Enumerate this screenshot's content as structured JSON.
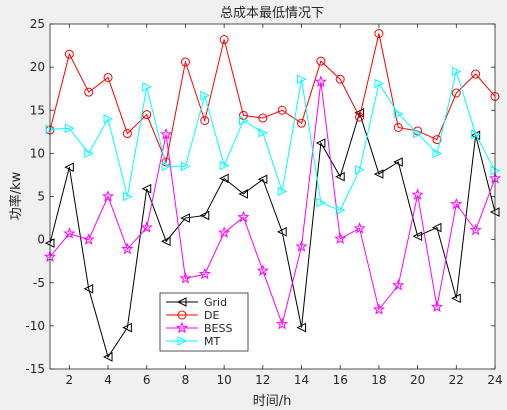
{
  "chart_data": {
    "type": "line",
    "title": "总成本最低情况下",
    "xlabel": "时间/h",
    "ylabel": "功率/kw",
    "xlim": [
      1,
      24
    ],
    "ylim": [
      -15,
      25
    ],
    "x_ticks": [
      2,
      4,
      6,
      8,
      10,
      12,
      14,
      16,
      18,
      20,
      22,
      24
    ],
    "y_ticks": [
      -15,
      -10,
      -5,
      0,
      5,
      10,
      15,
      20,
      25
    ],
    "x": [
      1,
      2,
      3,
      4,
      5,
      6,
      7,
      8,
      9,
      10,
      11,
      12,
      13,
      14,
      15,
      16,
      17,
      18,
      19,
      20,
      21,
      22,
      23,
      24
    ],
    "grid": false,
    "legend_position": "bottom-left",
    "series": [
      {
        "name": "Grid",
        "color": "#000000",
        "marker": "triangle-left",
        "values": [
          -0.4,
          8.4,
          -5.7,
          -13.6,
          -10.2,
          5.9,
          -0.2,
          2.5,
          2.8,
          7.1,
          5.3,
          7.0,
          0.9,
          -10.2,
          11.2,
          7.3,
          14.7,
          7.6,
          9.0,
          0.4,
          1.4,
          -6.8,
          12.1,
          3.2
        ]
      },
      {
        "name": "DE",
        "color": "#ff0000",
        "marker": "circle",
        "values": [
          12.7,
          21.5,
          17.1,
          18.8,
          12.3,
          14.5,
          9.0,
          20.6,
          13.8,
          23.2,
          14.4,
          14.1,
          15.0,
          13.5,
          20.7,
          18.6,
          14.2,
          23.9,
          13.0,
          12.6,
          11.6,
          17.0,
          19.2,
          16.6
        ]
      },
      {
        "name": "BESS",
        "color": "#ff00ff",
        "marker": "star",
        "values": [
          -2.0,
          0.7,
          0.0,
          5.0,
          -1.1,
          1.4,
          12.2,
          -4.5,
          -4.0,
          0.8,
          2.6,
          -3.6,
          -9.8,
          -0.8,
          18.3,
          0.1,
          1.3,
          -8.1,
          -5.3,
          5.2,
          -7.8,
          4.1,
          1.1,
          7.1
        ]
      },
      {
        "name": "MT",
        "color": "#00ffff",
        "marker": "triangle-right",
        "values": [
          12.8,
          12.9,
          10.0,
          14.0,
          5.0,
          17.7,
          8.5,
          8.5,
          16.7,
          8.6,
          13.8,
          12.4,
          5.6,
          18.6,
          4.3,
          3.4,
          8.1,
          18.1,
          14.6,
          12.3,
          10.0,
          19.5,
          12.2,
          8.0
        ]
      }
    ]
  }
}
